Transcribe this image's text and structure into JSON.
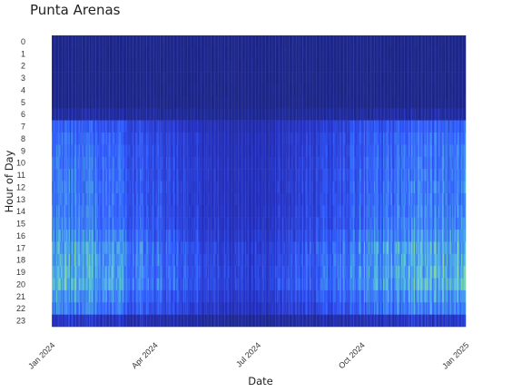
{
  "chart_data": {
    "type": "heatmap",
    "title": "Punta Arenas",
    "xlabel": "Date",
    "ylabel": "Hour of Day",
    "x_ticks": [
      "Jan 2024",
      "Apr 2024",
      "Jul 2024",
      "Oct 2024",
      "Jan 2025"
    ],
    "x_range": [
      "2024-01-01",
      "2025-01-01"
    ],
    "y_ticks": [
      "0",
      "1",
      "2",
      "3",
      "4",
      "5",
      "6",
      "7",
      "8",
      "9",
      "10",
      "11",
      "12",
      "13",
      "14",
      "15",
      "16",
      "17",
      "18",
      "19",
      "20",
      "21",
      "22",
      "23"
    ],
    "colorscale": [
      "#1a237e",
      "#2431c6",
      "#2f5bff",
      "#3f8ff0",
      "#53c1dc",
      "#7ed6a0"
    ],
    "value_range": [
      0,
      1
    ],
    "hour_profile": [
      0.03,
      0.03,
      0.03,
      0.03,
      0.03,
      0.03,
      0.08,
      0.24,
      0.3,
      0.32,
      0.34,
      0.35,
      0.36,
      0.36,
      0.37,
      0.39,
      0.46,
      0.56,
      0.57,
      0.6,
      0.62,
      0.48,
      0.38,
      0.22
    ],
    "monthly_level": [
      {
        "month": "2024-01",
        "level": 1.0
      },
      {
        "month": "2024-02",
        "level": 0.93
      },
      {
        "month": "2024-03",
        "level": 0.82
      },
      {
        "month": "2024-04",
        "level": 0.66
      },
      {
        "month": "2024-05",
        "level": 0.5
      },
      {
        "month": "2024-06",
        "level": 0.35
      },
      {
        "month": "2024-07",
        "level": 0.33
      },
      {
        "month": "2024-08",
        "level": 0.45
      },
      {
        "month": "2024-09",
        "level": 0.62
      },
      {
        "month": "2024-10",
        "level": 0.78
      },
      {
        "month": "2024-11",
        "level": 0.92
      },
      {
        "month": "2024-12",
        "level": 1.0
      }
    ],
    "grid": true,
    "legend": "none"
  }
}
